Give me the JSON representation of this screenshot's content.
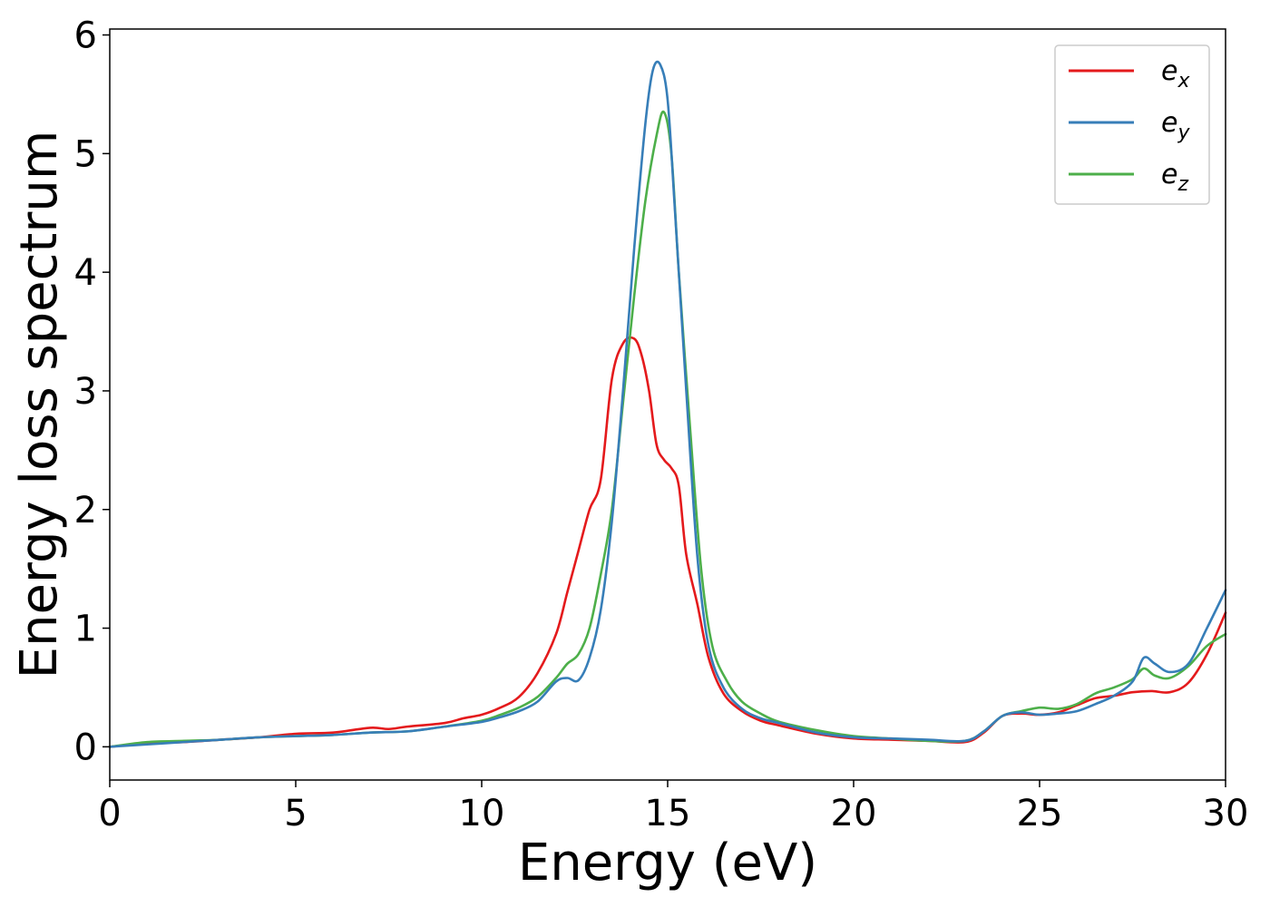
{
  "chart_data": {
    "type": "line",
    "xlabel": "Energy (eV)",
    "ylabel": "Energy loss spectrum",
    "xlim": [
      0,
      30
    ],
    "ylim": [
      -0.28,
      6.05
    ],
    "xticks": [
      "0",
      "5",
      "10",
      "15",
      "20",
      "25",
      "30"
    ],
    "yticks": [
      "0",
      "1",
      "2",
      "3",
      "4",
      "5",
      "6"
    ],
    "grid": false,
    "legend_position": "top-right",
    "series": [
      {
        "name": "e_x",
        "legend_base": "e",
        "legend_sub": "x",
        "color": "#e41a1c",
        "x": [
          0,
          1,
          2,
          3,
          4,
          5,
          6,
          7,
          7.5,
          8,
          9,
          9.5,
          10,
          10.5,
          11,
          11.5,
          12,
          12.3,
          12.6,
          12.9,
          13.2,
          13.5,
          13.8,
          14.1,
          14.3,
          14.5,
          14.7,
          14.9,
          15.1,
          15.3,
          15.5,
          15.8,
          16.1,
          16.5,
          17,
          17.5,
          18,
          19,
          20,
          21,
          22,
          23,
          23.5,
          24,
          24.5,
          25,
          25.5,
          26,
          26.5,
          27,
          27.5,
          28,
          28.5,
          29,
          29.5,
          30
        ],
        "y": [
          0,
          0.03,
          0.04,
          0.06,
          0.08,
          0.11,
          0.12,
          0.16,
          0.15,
          0.17,
          0.2,
          0.24,
          0.27,
          0.33,
          0.42,
          0.62,
          0.95,
          1.3,
          1.65,
          2.0,
          2.25,
          3.1,
          3.4,
          3.44,
          3.3,
          3.0,
          2.55,
          2.42,
          2.35,
          2.2,
          1.62,
          1.2,
          0.75,
          0.45,
          0.3,
          0.22,
          0.18,
          0.11,
          0.07,
          0.06,
          0.05,
          0.04,
          0.12,
          0.26,
          0.28,
          0.27,
          0.29,
          0.35,
          0.41,
          0.43,
          0.46,
          0.47,
          0.46,
          0.54,
          0.78,
          1.13
        ]
      },
      {
        "name": "e_y",
        "legend_base": "e",
        "legend_sub": "y",
        "color": "#377eb8",
        "x": [
          0,
          1,
          2,
          3,
          4,
          5,
          6,
          7,
          8,
          9,
          10,
          10.5,
          11,
          11.5,
          12,
          12.3,
          12.6,
          12.9,
          13.2,
          13.5,
          13.8,
          14.1,
          14.4,
          14.6,
          14.8,
          15,
          15.2,
          15.5,
          15.8,
          16.1,
          16.5,
          17,
          17.5,
          18,
          19,
          20,
          21,
          22,
          23,
          23.5,
          24,
          24.5,
          25,
          25.5,
          26,
          26.5,
          27,
          27.5,
          27.8,
          28.1,
          28.5,
          29,
          29.5,
          30
        ],
        "y": [
          0,
          0.02,
          0.04,
          0.06,
          0.08,
          0.09,
          0.1,
          0.12,
          0.13,
          0.17,
          0.21,
          0.25,
          0.3,
          0.38,
          0.55,
          0.58,
          0.56,
          0.75,
          1.15,
          1.9,
          3.0,
          4.2,
          5.25,
          5.7,
          5.75,
          5.45,
          4.5,
          3.0,
          1.6,
          0.85,
          0.5,
          0.32,
          0.24,
          0.2,
          0.12,
          0.08,
          0.07,
          0.06,
          0.05,
          0.13,
          0.26,
          0.29,
          0.27,
          0.28,
          0.3,
          0.36,
          0.43,
          0.55,
          0.75,
          0.7,
          0.63,
          0.7,
          1.0,
          1.32
        ]
      },
      {
        "name": "e_z",
        "legend_base": "e",
        "legend_sub": "z",
        "color": "#4daf4a",
        "x": [
          0,
          1,
          2,
          3,
          4,
          5,
          6,
          7,
          8,
          9,
          10,
          10.5,
          11,
          11.5,
          12,
          12.3,
          12.6,
          12.9,
          13.2,
          13.5,
          13.8,
          14.1,
          14.4,
          14.7,
          14.9,
          15.1,
          15.3,
          15.6,
          15.9,
          16.2,
          16.6,
          17,
          17.5,
          18,
          19,
          20,
          21,
          22,
          23,
          23.5,
          24,
          24.5,
          25,
          25.5,
          26,
          26.5,
          27,
          27.5,
          27.8,
          28.1,
          28.5,
          29,
          29.5,
          30
        ],
        "y": [
          0,
          0.04,
          0.05,
          0.06,
          0.08,
          0.09,
          0.1,
          0.12,
          0.13,
          0.17,
          0.22,
          0.27,
          0.33,
          0.42,
          0.58,
          0.7,
          0.78,
          1.0,
          1.45,
          2.0,
          2.9,
          3.8,
          4.6,
          5.15,
          5.35,
          5.0,
          4.0,
          2.7,
          1.5,
          0.85,
          0.55,
          0.38,
          0.28,
          0.21,
          0.14,
          0.09,
          0.07,
          0.05,
          0.05,
          0.13,
          0.26,
          0.3,
          0.33,
          0.32,
          0.36,
          0.45,
          0.5,
          0.57,
          0.66,
          0.6,
          0.58,
          0.68,
          0.85,
          0.95
        ]
      }
    ]
  }
}
